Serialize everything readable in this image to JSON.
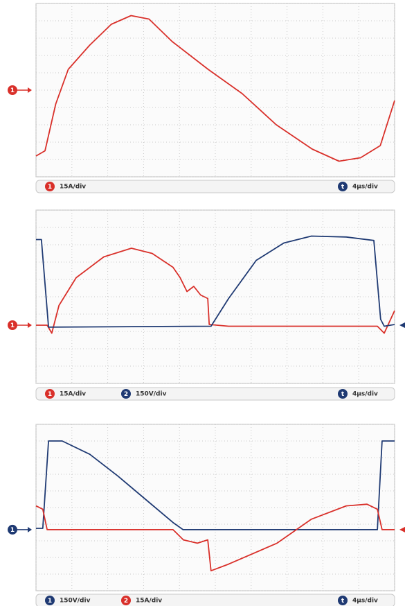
{
  "chart_data": [
    {
      "type": "line",
      "xlim": [
        0,
        10
      ],
      "ylim": [
        0,
        10
      ],
      "xticks": [
        0,
        1,
        2,
        3,
        4,
        5,
        6,
        7,
        8,
        9,
        10
      ],
      "yticks": [
        0,
        1,
        2,
        3,
        4,
        5,
        6,
        7,
        8,
        9,
        10
      ],
      "grid": true,
      "series": [
        {
          "channel": "1",
          "name": "15A/div",
          "color": "#d9302a",
          "level": 5,
          "marker_side": "left",
          "x": [
            0,
            0.25,
            0.55,
            0.9,
            1.5,
            2.1,
            2.65,
            3.15,
            3.8,
            4.8,
            5.75,
            6.7,
            7.7,
            8.45,
            9.05,
            9.6,
            10
          ],
          "values": [
            1.2,
            1.5,
            4.2,
            6.2,
            7.6,
            8.8,
            9.3,
            9.1,
            7.8,
            6.2,
            4.8,
            3,
            1.6,
            0.9,
            1.1,
            1.8,
            4.4
          ]
        }
      ],
      "timebase": {
        "channel": "t",
        "scale": "4µs/div"
      }
    },
    {
      "type": "line",
      "xlim": [
        0,
        10
      ],
      "ylim": [
        0,
        10
      ],
      "xticks": [
        0,
        1,
        2,
        3,
        4,
        5,
        6,
        7,
        8,
        9,
        10
      ],
      "yticks": [
        0,
        1,
        2,
        3,
        4,
        5,
        6,
        7,
        8,
        9,
        10
      ],
      "grid": true,
      "series": [
        {
          "channel": "1",
          "name": "15A/div",
          "color": "#d9302a",
          "level": 3.36,
          "marker_side": "left",
          "x": [
            0,
            0.31,
            0.44,
            0.64,
            1.12,
            1.89,
            2.66,
            3.24,
            3.82,
            4.02,
            4.21,
            4.4,
            4.59,
            4.79,
            4.83,
            5.37,
            9.52,
            9.71,
            10
          ],
          "values": [
            3.36,
            3.36,
            2.9,
            4.5,
            6.1,
            7.3,
            7.8,
            7.5,
            6.7,
            6.1,
            5.3,
            5.6,
            5.1,
            4.9,
            3.4,
            3.3,
            3.3,
            2.9,
            4.2
          ]
        },
        {
          "channel": "2",
          "name": "150V/div",
          "color": "#1f3a73",
          "level": 3.36,
          "marker_side": "right",
          "x": [
            0,
            0.15,
            0.35,
            4.88,
            5.37,
            6.14,
            6.91,
            7.68,
            8.65,
            9.42,
            9.61,
            9.71,
            10
          ],
          "values": [
            8.3,
            8.3,
            3.25,
            3.3,
            4.9,
            7.1,
            8.1,
            8.5,
            8.45,
            8.25,
            3.7,
            3.3,
            3.4
          ]
        }
      ],
      "timebase": {
        "channel": "t",
        "scale": "4µs/div"
      }
    },
    {
      "type": "line",
      "xlim": [
        0,
        10
      ],
      "ylim": [
        0,
        10
      ],
      "xticks": [
        0,
        1,
        2,
        3,
        4,
        5,
        6,
        7,
        8,
        9,
        10
      ],
      "yticks": [
        0,
        1,
        2,
        3,
        4,
        5,
        6,
        7,
        8,
        9,
        10
      ],
      "grid": true,
      "series": [
        {
          "channel": "1",
          "name": "150V/div",
          "color": "#1f3a73",
          "level": 3.67,
          "marker_side": "left",
          "x": [
            0,
            0.19,
            0.35,
            0.73,
            1.5,
            2.28,
            3.05,
            3.82,
            4.1,
            9.52,
            9.65,
            10
          ],
          "values": [
            3.75,
            3.75,
            9,
            9,
            8.2,
            6.9,
            5.5,
            4.1,
            3.67,
            3.67,
            9,
            9
          ]
        },
        {
          "channel": "2",
          "name": "15A/div",
          "color": "#d9302a",
          "level": 3.67,
          "marker_side": "right",
          "x": [
            0,
            0.19,
            0.31,
            3.82,
            4.11,
            4.5,
            4.79,
            4.88,
            5.37,
            6.72,
            7.68,
            8.65,
            9.23,
            9.52,
            9.65,
            10
          ],
          "values": [
            5.1,
            4.9,
            3.67,
            3.67,
            3.06,
            2.86,
            3.06,
            1.2,
            1.6,
            2.86,
            4.3,
            5.1,
            5.2,
            4.9,
            3.67,
            3.67
          ]
        }
      ],
      "timebase": {
        "channel": "t",
        "scale": "4µs/div"
      }
    }
  ]
}
